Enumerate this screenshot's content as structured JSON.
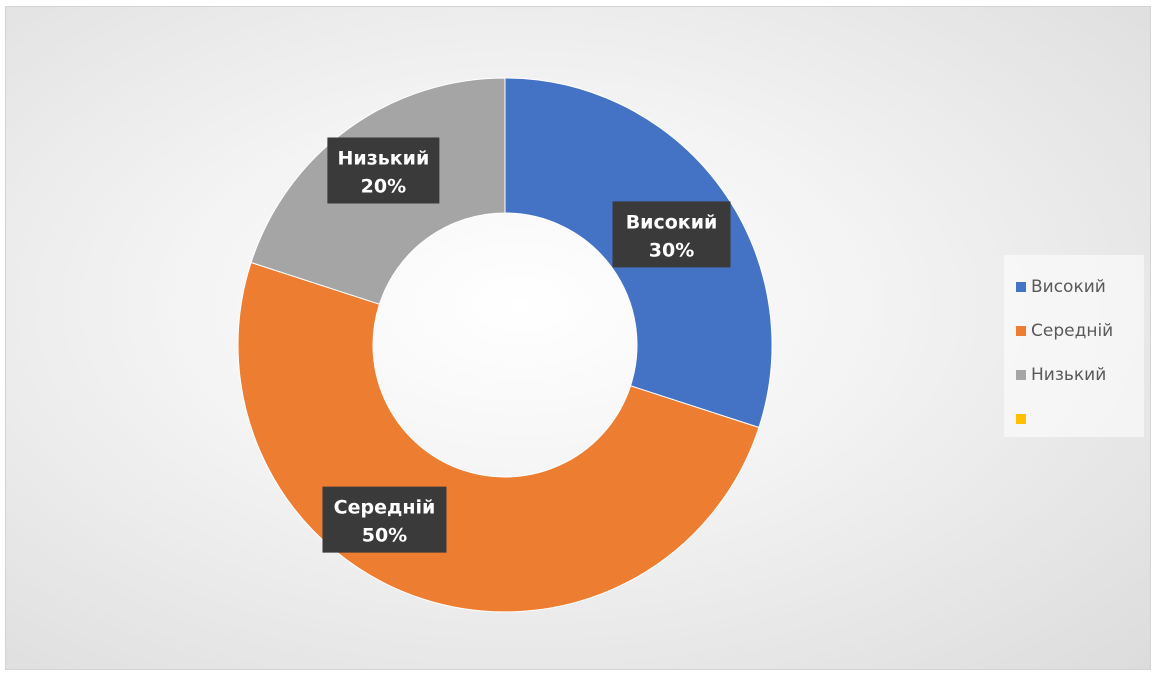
{
  "chart_data": {
    "type": "pie",
    "donut": true,
    "title": "",
    "legend_position": "right",
    "categories": [
      "Високий",
      "Середній",
      "Низький",
      ""
    ],
    "values": [
      30,
      50,
      20,
      0
    ],
    "data_labels": [
      {
        "category": "Високий",
        "percent": "30%"
      },
      {
        "category": "Середній",
        "percent": "50%"
      },
      {
        "category": "Низький",
        "percent": "20%"
      }
    ],
    "colors": [
      "#4472c4",
      "#ed7d31",
      "#a5a5a5",
      "#ffc000"
    ]
  }
}
